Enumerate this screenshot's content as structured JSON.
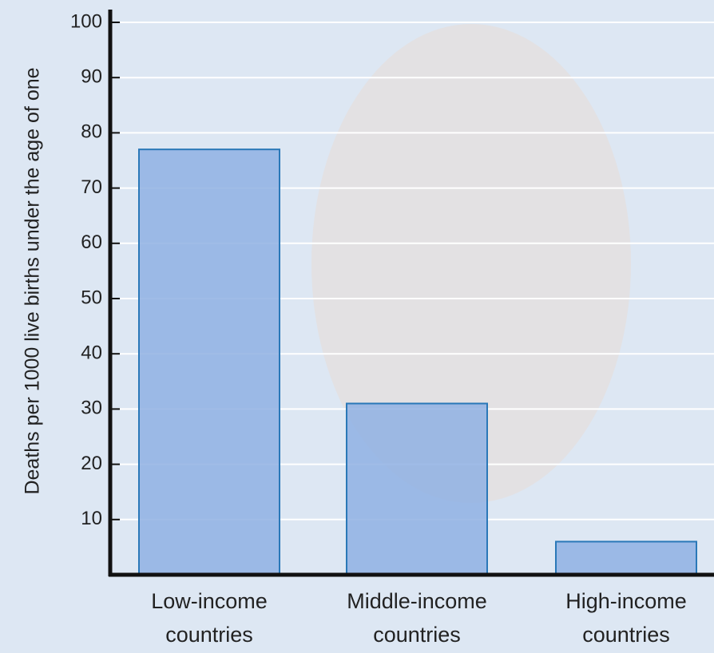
{
  "chart_data": {
    "type": "bar",
    "y_label": "Deaths per 1000 live births under the age of one",
    "categories": [
      "Low-income countries",
      "Middle-income countries",
      "High-income countries"
    ],
    "values": [
      77,
      31,
      6
    ],
    "color": "#8fb0e3",
    "ylim": [
      0,
      100
    ],
    "yticks": [
      10,
      20,
      30,
      40,
      50,
      60,
      70,
      80,
      90,
      100
    ],
    "grid": true
  }
}
